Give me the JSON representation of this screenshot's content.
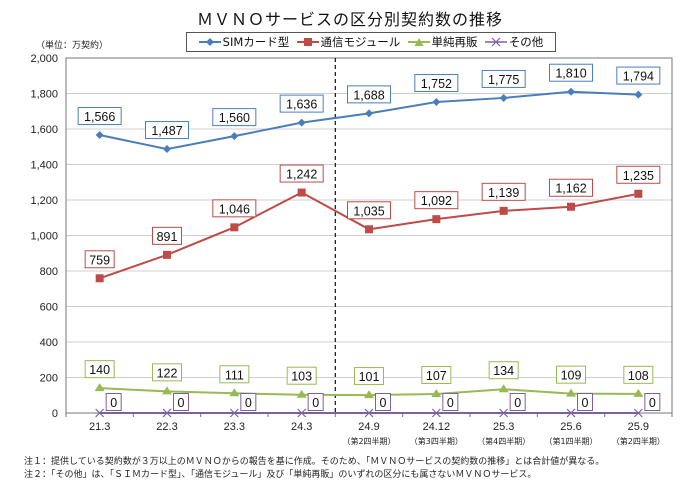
{
  "chart_data": {
    "type": "line",
    "title": "ＭＶＮＯサービスの区分別契約数の推移",
    "unit_label": "（単位：万契約）",
    "xlabel": "",
    "ylabel": "",
    "ylim": [
      0,
      2000
    ],
    "yticks": [
      0,
      200,
      400,
      600,
      800,
      1000,
      1200,
      1400,
      1600,
      1800,
      2000
    ],
    "ytick_labels": [
      "0",
      "200",
      "400",
      "600",
      "800",
      "1,000",
      "1,200",
      "1,400",
      "1,600",
      "1,800",
      "2,000"
    ],
    "grid": true,
    "legend_position": "top-center",
    "categories": [
      "21.3",
      "22.3",
      "23.3",
      "24.3",
      "24.9",
      "24.12",
      "25.3",
      "25.6",
      "25.9"
    ],
    "category_sublabels": [
      "",
      "",
      "",
      "",
      "（第2四半期）",
      "（第3四半期）",
      "（第4四半期）",
      "（第1四半期）",
      "（第2四半期）"
    ],
    "divider_after_index": 3,
    "series": [
      {
        "name": "SIMカード型",
        "color": "#4a7ebb",
        "marker": "diamond",
        "values": [
          1566,
          1487,
          1560,
          1636,
          1688,
          1752,
          1775,
          1810,
          1794
        ],
        "labels": [
          "1,566",
          "1,487",
          "1,560",
          "1,636",
          "1,688",
          "1,752",
          "1,775",
          "1,810",
          "1,794"
        ]
      },
      {
        "name": "通信モジュール",
        "color": "#be4b48",
        "marker": "square",
        "values": [
          759,
          891,
          1046,
          1242,
          1035,
          1092,
          1139,
          1162,
          1235
        ],
        "labels": [
          "759",
          "891",
          "1,046",
          "1,242",
          "1,035",
          "1,092",
          "1,139",
          "1,162",
          "1,235"
        ]
      },
      {
        "name": "単純再販",
        "color": "#98b954",
        "marker": "triangle",
        "values": [
          140,
          122,
          111,
          103,
          101,
          107,
          134,
          109,
          108
        ],
        "labels": [
          "140",
          "122",
          "111",
          "103",
          "101",
          "107",
          "134",
          "109",
          "108"
        ]
      },
      {
        "name": "その他",
        "color": "#7d60a0",
        "marker": "x",
        "values": [
          0,
          0,
          0,
          0,
          0,
          0,
          0,
          0,
          0
        ],
        "labels": [
          "0",
          "0",
          "0",
          "0",
          "0",
          "0",
          "0",
          "0",
          "0"
        ]
      }
    ]
  },
  "notes": [
    "注１：提供している契約数が３万以上のＭＶＮＯからの報告を基に作成。そのため、「ＭＶＮＯサービスの契約数の推移」とは合計値が異なる。",
    "注２：「その他」は、「ＳＩＭカード型」、「通信モジュール」及び「単純再販」のいずれの区分にも属さないＭＶＮＯサービス。"
  ]
}
